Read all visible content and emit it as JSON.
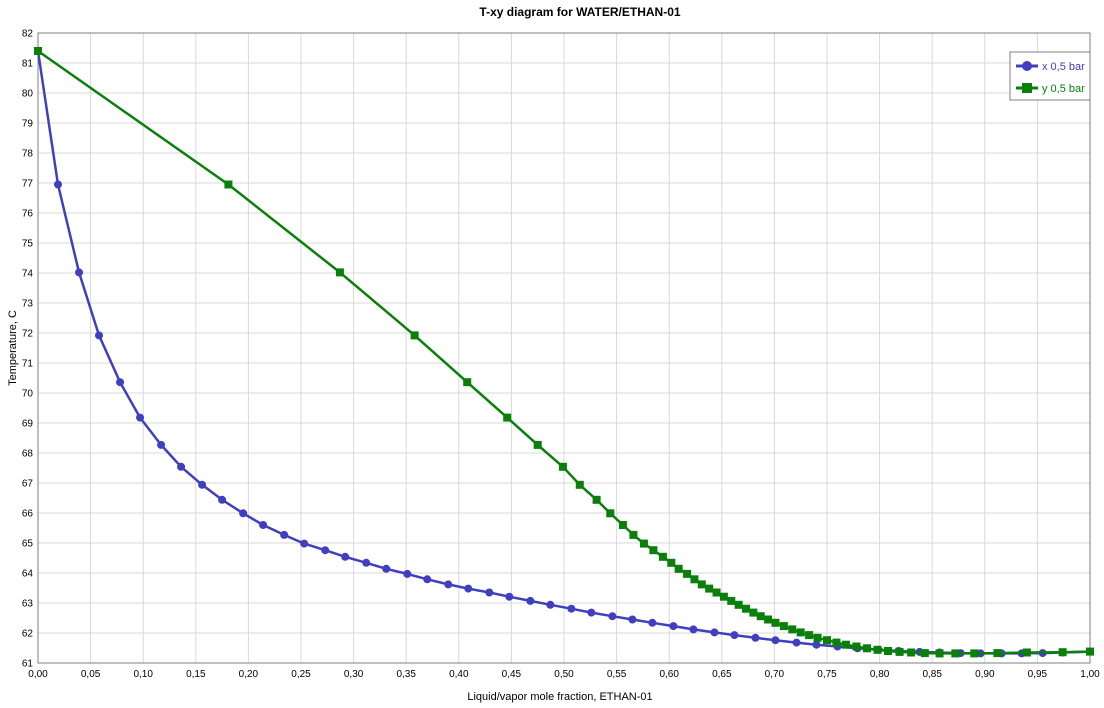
{
  "chart_data": {
    "type": "line",
    "title": "T-xy diagram for WATER/ETHAN-01",
    "xlabel": "Liquid/vapor mole fraction, ETHAN-01",
    "ylabel": "Temperature, C",
    "xlim": [
      0,
      1
    ],
    "ylim": [
      61,
      82
    ],
    "grid": true,
    "legend_position": "top-right",
    "x_ticks": [
      "0,00",
      "0,05",
      "0,10",
      "0,15",
      "0,20",
      "0,25",
      "0,30",
      "0,35",
      "0,40",
      "0,45",
      "0,50",
      "0,55",
      "0,60",
      "0,65",
      "0,70",
      "0,75",
      "0,80",
      "0,85",
      "0,90",
      "0,95",
      "1,00"
    ],
    "y_ticks": [
      "61",
      "62",
      "63",
      "64",
      "65",
      "66",
      "67",
      "68",
      "69",
      "70",
      "71",
      "72",
      "73",
      "74",
      "75",
      "76",
      "77",
      "78",
      "79",
      "80",
      "81",
      "82"
    ],
    "series": [
      {
        "name": "x  0,5 bar",
        "color": "#3f3fbf",
        "marker": "circle",
        "x": [
          0.0,
          0.019,
          0.039,
          0.058,
          0.078,
          0.097,
          0.117,
          0.136,
          0.156,
          0.175,
          0.195,
          0.214,
          0.234,
          0.253,
          0.273,
          0.292,
          0.312,
          0.331,
          0.351,
          0.37,
          0.39,
          0.409,
          0.429,
          0.448,
          0.468,
          0.487,
          0.507,
          0.526,
          0.546,
          0.565,
          0.584,
          0.604,
          0.623,
          0.643,
          0.662,
          0.682,
          0.701,
          0.721,
          0.74,
          0.76,
          0.779,
          0.799,
          0.818,
          0.838,
          0.857,
          0.877,
          0.896,
          0.916,
          0.935,
          0.955,
          0.974,
          1.0
        ],
        "y": [
          81.4,
          76.95,
          74.02,
          71.92,
          70.36,
          69.18,
          68.27,
          67.54,
          66.94,
          66.44,
          65.99,
          65.6,
          65.27,
          64.98,
          64.76,
          64.54,
          64.34,
          64.14,
          63.97,
          63.79,
          63.62,
          63.48,
          63.35,
          63.21,
          63.07,
          62.94,
          62.81,
          62.68,
          62.56,
          62.45,
          62.34,
          62.23,
          62.12,
          62.02,
          61.93,
          61.84,
          61.76,
          61.68,
          61.61,
          61.55,
          61.49,
          61.44,
          61.4,
          61.37,
          61.35,
          61.33,
          61.32,
          61.32,
          61.32,
          61.33,
          61.35,
          61.38
        ]
      },
      {
        "name": "y  0,5 bar",
        "color": "#0a7f0a",
        "marker": "square",
        "x": [
          0.0,
          0.181,
          0.287,
          0.358,
          0.408,
          0.446,
          0.475,
          0.499,
          0.515,
          0.531,
          0.544,
          0.556,
          0.566,
          0.576,
          0.585,
          0.594,
          0.602,
          0.609,
          0.617,
          0.624,
          0.631,
          0.638,
          0.645,
          0.652,
          0.659,
          0.666,
          0.673,
          0.68,
          0.687,
          0.694,
          0.701,
          0.709,
          0.717,
          0.725,
          0.733,
          0.741,
          0.75,
          0.759,
          0.768,
          0.778,
          0.788,
          0.798,
          0.808,
          0.819,
          0.83,
          0.843,
          0.857,
          0.872,
          0.89,
          0.912,
          0.94,
          0.974,
          1.0
        ],
        "y": [
          81.4,
          76.95,
          74.02,
          71.92,
          70.36,
          69.18,
          68.27,
          67.54,
          66.94,
          66.44,
          65.99,
          65.6,
          65.27,
          64.98,
          64.76,
          64.54,
          64.34,
          64.14,
          63.97,
          63.79,
          63.62,
          63.48,
          63.35,
          63.21,
          63.07,
          62.94,
          62.81,
          62.68,
          62.56,
          62.45,
          62.34,
          62.23,
          62.12,
          62.02,
          61.93,
          61.84,
          61.76,
          61.68,
          61.61,
          61.55,
          61.49,
          61.44,
          61.4,
          61.37,
          61.35,
          61.33,
          61.32,
          61.32,
          61.32,
          61.33,
          61.35,
          61.36,
          61.38
        ]
      }
    ]
  }
}
